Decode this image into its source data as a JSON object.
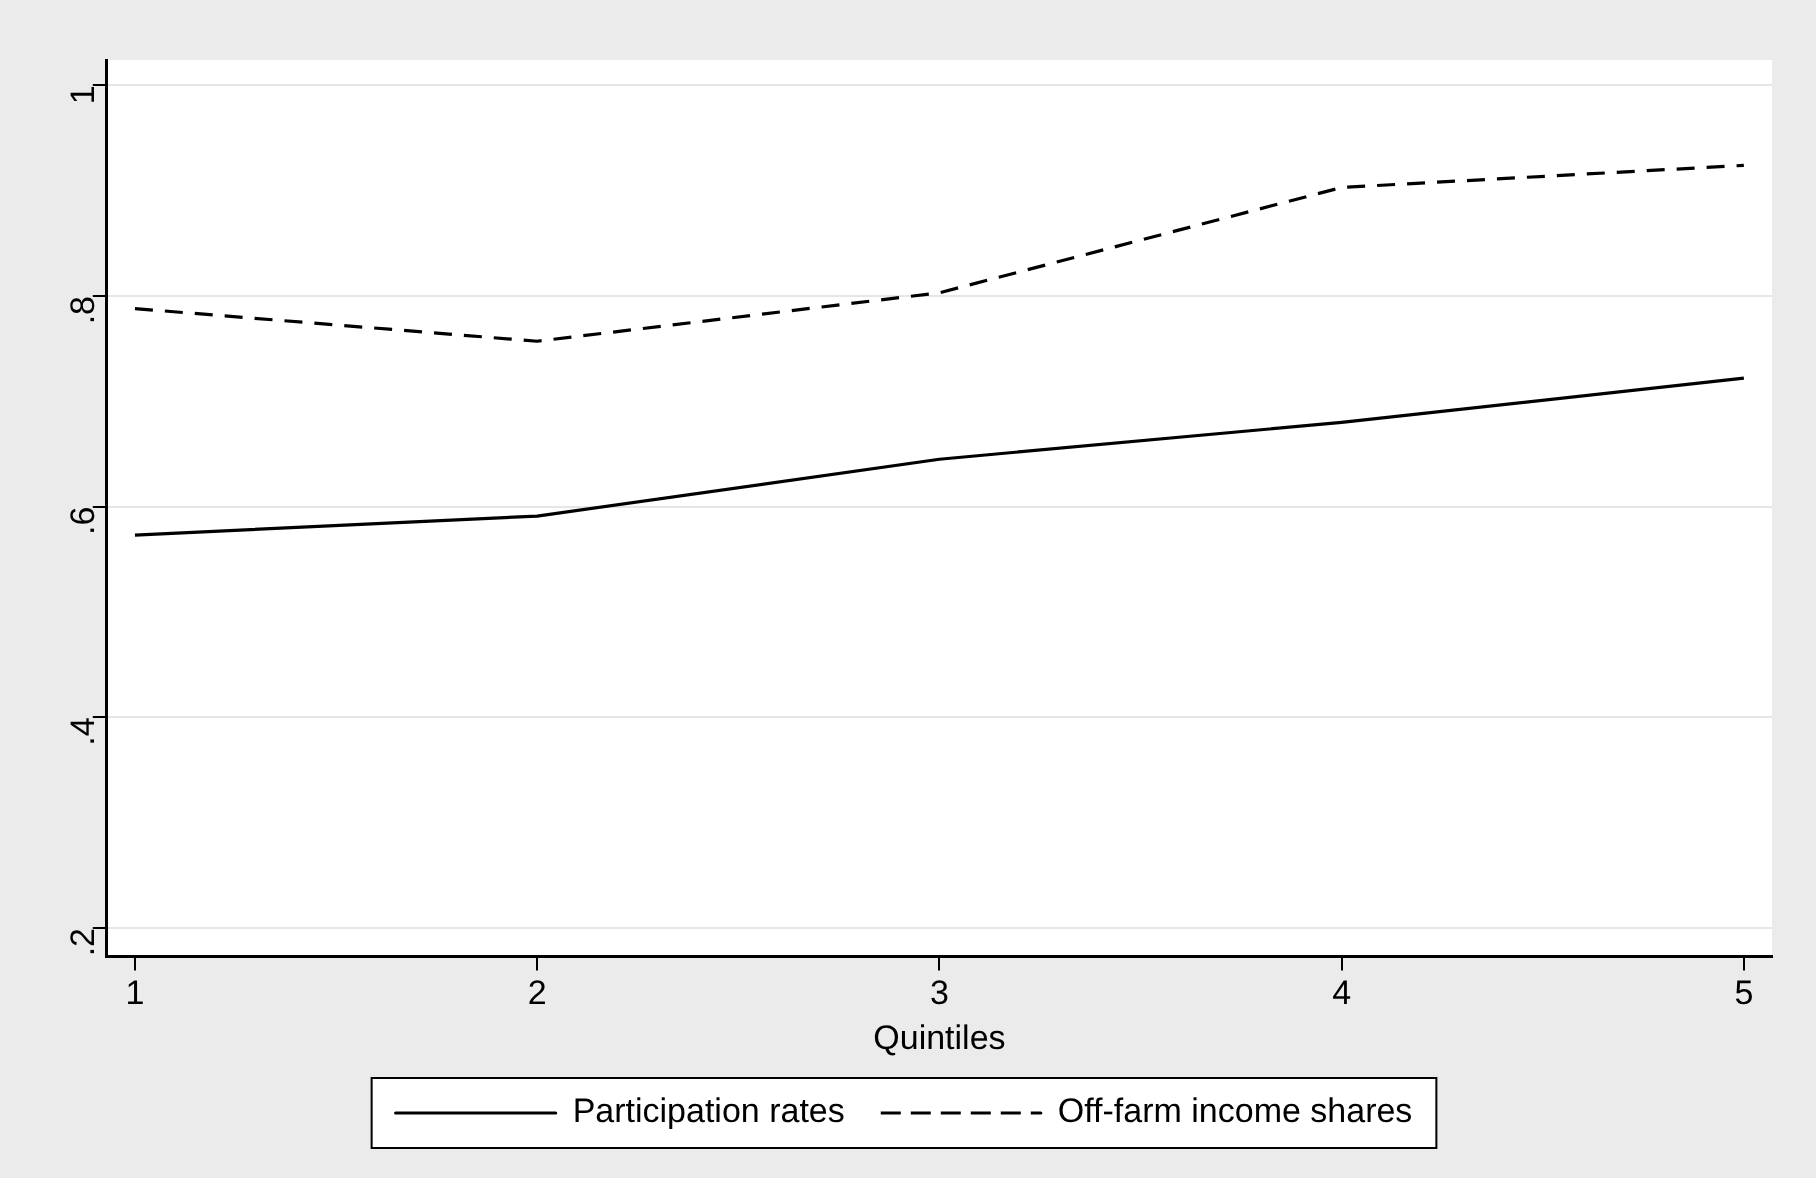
{
  "chart_data": {
    "type": "line",
    "xlabel": "Quintiles",
    "x": [
      1,
      2,
      3,
      4,
      5
    ],
    "series": [
      {
        "name": "Participation rates",
        "color": "#000000",
        "line_style": "solid",
        "values": [
          0.573,
          0.591,
          0.645,
          0.68,
          0.722
        ]
      },
      {
        "name": "Off-farm income shares",
        "color": "#000000",
        "line_style": "dashed",
        "values": [
          0.788,
          0.757,
          0.803,
          0.903,
          0.924
        ]
      }
    ],
    "xlim": [
      0.93,
      5.07
    ],
    "xticks": [
      1,
      2,
      3,
      4,
      5
    ],
    "ylim": [
      0.173,
      1.024
    ],
    "yticks": [
      {
        "value": 0.2,
        "label": ".2"
      },
      {
        "value": 0.4,
        "label": ".4"
      },
      {
        "value": 0.6,
        "label": ".6"
      },
      {
        "value": 0.8,
        "label": ".8"
      },
      {
        "value": 1,
        "label": "1"
      }
    ],
    "grid": "y",
    "legend": "bottom",
    "marker": "none"
  }
}
